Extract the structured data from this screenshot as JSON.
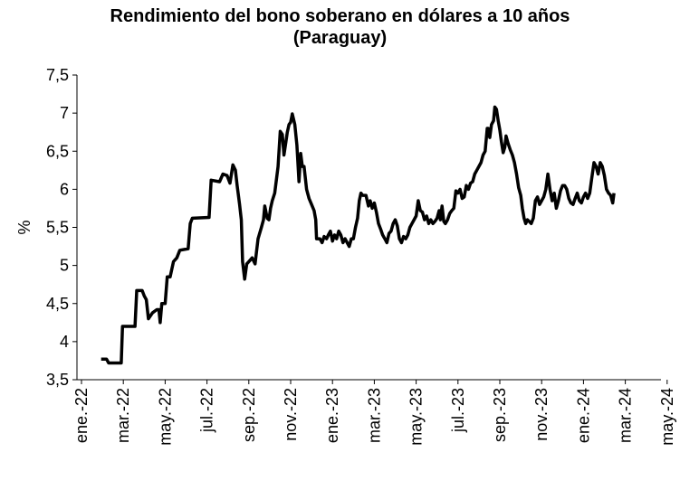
{
  "chart_data": {
    "type": "line",
    "title": "Rendimiento del bono soberano en dólares a 10 años",
    "subtitle": "(Paraguay)",
    "ylabel": "%",
    "xlabel": "",
    "ylim": [
      3.5,
      7.5
    ],
    "yticks": [
      "3,5",
      "4",
      "4,5",
      "5",
      "5,5",
      "6",
      "6,5",
      "7",
      "7,5"
    ],
    "categories": [
      "ene.-22",
      "mar.-22",
      "may.-22",
      "jul.-22",
      "sep.-22",
      "nov.-22",
      "ene.-23",
      "mar.-23",
      "may.-23",
      "jul.-23",
      "sep.-23",
      "nov.-23",
      "ene.-24",
      "mar.-24",
      "may.-24"
    ],
    "grid": false,
    "legend": "none",
    "line_color": "#000000",
    "series": [
      {
        "values": [
          [
            0.47,
            3.77
          ],
          [
            0.6,
            3.77
          ],
          [
            0.65,
            3.72
          ],
          [
            0.95,
            3.72
          ],
          [
            0.98,
            4.2
          ],
          [
            1.28,
            4.2
          ],
          [
            1.32,
            4.67
          ],
          [
            1.45,
            4.67
          ],
          [
            1.5,
            4.6
          ],
          [
            1.55,
            4.55
          ],
          [
            1.6,
            4.3
          ],
          [
            1.7,
            4.38
          ],
          [
            1.8,
            4.42
          ],
          [
            1.85,
            4.42
          ],
          [
            1.88,
            4.25
          ],
          [
            1.92,
            4.5
          ],
          [
            2.0,
            4.5
          ],
          [
            2.05,
            4.85
          ],
          [
            2.12,
            4.85
          ],
          [
            2.2,
            5.05
          ],
          [
            2.28,
            5.1
          ],
          [
            2.35,
            5.2
          ],
          [
            2.55,
            5.22
          ],
          [
            2.6,
            5.55
          ],
          [
            2.65,
            5.62
          ],
          [
            3.05,
            5.63
          ],
          [
            3.1,
            6.12
          ],
          [
            3.3,
            6.1
          ],
          [
            3.38,
            6.2
          ],
          [
            3.48,
            6.18
          ],
          [
            3.55,
            6.08
          ],
          [
            3.62,
            6.32
          ],
          [
            3.68,
            6.25
          ],
          [
            3.72,
            6.05
          ],
          [
            3.78,
            5.8
          ],
          [
            3.82,
            5.6
          ],
          [
            3.85,
            5.05
          ],
          [
            3.9,
            4.82
          ],
          [
            3.95,
            5.02
          ],
          [
            4.0,
            5.05
          ],
          [
            4.08,
            5.1
          ],
          [
            4.15,
            5.02
          ],
          [
            4.22,
            5.35
          ],
          [
            4.3,
            5.5
          ],
          [
            4.35,
            5.6
          ],
          [
            4.38,
            5.78
          ],
          [
            4.44,
            5.62
          ],
          [
            4.48,
            5.6
          ],
          [
            4.52,
            5.75
          ],
          [
            4.56,
            5.85
          ],
          [
            4.62,
            5.95
          ],
          [
            4.7,
            6.3
          ],
          [
            4.75,
            6.76
          ],
          [
            4.8,
            6.72
          ],
          [
            4.84,
            6.45
          ],
          [
            4.88,
            6.6
          ],
          [
            4.92,
            6.75
          ],
          [
            4.96,
            6.85
          ],
          [
            5.0,
            6.88
          ],
          [
            5.04,
            6.99
          ],
          [
            5.1,
            6.85
          ],
          [
            5.15,
            6.58
          ],
          [
            5.2,
            6.1
          ],
          [
            5.24,
            6.47
          ],
          [
            5.28,
            6.3
          ],
          [
            5.32,
            6.3
          ],
          [
            5.38,
            6.0
          ],
          [
            5.44,
            5.88
          ],
          [
            5.5,
            5.8
          ],
          [
            5.56,
            5.72
          ],
          [
            5.6,
            5.6
          ],
          [
            5.62,
            5.35
          ],
          [
            5.7,
            5.35
          ],
          [
            5.75,
            5.3
          ],
          [
            5.8,
            5.38
          ],
          [
            5.86,
            5.35
          ],
          [
            5.9,
            5.4
          ],
          [
            5.95,
            5.45
          ],
          [
            6.0,
            5.32
          ],
          [
            6.05,
            5.4
          ],
          [
            6.1,
            5.35
          ],
          [
            6.15,
            5.45
          ],
          [
            6.2,
            5.4
          ],
          [
            6.25,
            5.3
          ],
          [
            6.3,
            5.35
          ],
          [
            6.35,
            5.3
          ],
          [
            6.4,
            5.25
          ],
          [
            6.45,
            5.35
          ],
          [
            6.5,
            5.35
          ],
          [
            6.55,
            5.5
          ],
          [
            6.6,
            5.62
          ],
          [
            6.64,
            5.85
          ],
          [
            6.68,
            5.95
          ],
          [
            6.72,
            5.92
          ],
          [
            6.8,
            5.92
          ],
          [
            6.86,
            5.78
          ],
          [
            6.9,
            5.85
          ],
          [
            6.95,
            5.75
          ],
          [
            7.0,
            5.82
          ],
          [
            7.05,
            5.7
          ],
          [
            7.1,
            5.55
          ],
          [
            7.15,
            5.48
          ],
          [
            7.2,
            5.4
          ],
          [
            7.25,
            5.35
          ],
          [
            7.3,
            5.3
          ],
          [
            7.35,
            5.42
          ],
          [
            7.4,
            5.45
          ],
          [
            7.45,
            5.55
          ],
          [
            7.5,
            5.6
          ],
          [
            7.55,
            5.52
          ],
          [
            7.6,
            5.35
          ],
          [
            7.65,
            5.3
          ],
          [
            7.7,
            5.38
          ],
          [
            7.75,
            5.35
          ],
          [
            7.8,
            5.4
          ],
          [
            7.85,
            5.5
          ],
          [
            7.9,
            5.55
          ],
          [
            7.95,
            5.6
          ],
          [
            8.0,
            5.65
          ],
          [
            8.05,
            5.85
          ],
          [
            8.1,
            5.72
          ],
          [
            8.15,
            5.7
          ],
          [
            8.2,
            5.6
          ],
          [
            8.25,
            5.65
          ],
          [
            8.3,
            5.55
          ],
          [
            8.35,
            5.6
          ],
          [
            8.4,
            5.55
          ],
          [
            8.45,
            5.58
          ],
          [
            8.5,
            5.62
          ],
          [
            8.55,
            5.72
          ],
          [
            8.58,
            5.6
          ],
          [
            8.62,
            5.78
          ],
          [
            8.66,
            5.58
          ],
          [
            8.7,
            5.55
          ],
          [
            8.75,
            5.6
          ],
          [
            8.8,
            5.68
          ],
          [
            8.85,
            5.72
          ],
          [
            8.9,
            5.75
          ],
          [
            8.95,
            5.98
          ],
          [
            9.0,
            5.95
          ],
          [
            9.05,
            6.0
          ],
          [
            9.1,
            5.88
          ],
          [
            9.15,
            5.9
          ],
          [
            9.2,
            6.05
          ],
          [
            9.25,
            6.0
          ],
          [
            9.3,
            6.08
          ],
          [
            9.35,
            6.1
          ],
          [
            9.4,
            6.2
          ],
          [
            9.45,
            6.25
          ],
          [
            9.5,
            6.3
          ],
          [
            9.55,
            6.35
          ],
          [
            9.6,
            6.45
          ],
          [
            9.65,
            6.5
          ],
          [
            9.7,
            6.8
          ],
          [
            9.72,
            6.8
          ],
          [
            9.76,
            6.68
          ],
          [
            9.8,
            6.85
          ],
          [
            9.85,
            6.9
          ],
          [
            9.88,
            7.08
          ],
          [
            9.92,
            7.05
          ],
          [
            9.96,
            6.9
          ],
          [
            10.0,
            6.78
          ],
          [
            10.04,
            6.62
          ],
          [
            10.08,
            6.48
          ],
          [
            10.12,
            6.55
          ],
          [
            10.15,
            6.7
          ],
          [
            10.2,
            6.6
          ],
          [
            10.25,
            6.52
          ],
          [
            10.3,
            6.45
          ],
          [
            10.35,
            6.35
          ],
          [
            10.4,
            6.2
          ],
          [
            10.45,
            6.02
          ],
          [
            10.5,
            5.92
          ],
          [
            10.54,
            5.75
          ],
          [
            10.58,
            5.62
          ],
          [
            10.62,
            5.55
          ],
          [
            10.66,
            5.6
          ],
          [
            10.7,
            5.58
          ],
          [
            10.75,
            5.55
          ],
          [
            10.8,
            5.62
          ],
          [
            10.85,
            5.85
          ],
          [
            10.9,
            5.9
          ],
          [
            10.95,
            5.8
          ],
          [
            11.0,
            5.85
          ],
          [
            11.05,
            5.9
          ],
          [
            11.1,
            6.0
          ],
          [
            11.15,
            6.2
          ],
          [
            11.2,
            6.0
          ],
          [
            11.25,
            5.85
          ],
          [
            11.3,
            5.95
          ],
          [
            11.35,
            5.75
          ],
          [
            11.4,
            5.85
          ],
          [
            11.45,
            5.98
          ],
          [
            11.5,
            6.05
          ],
          [
            11.55,
            6.05
          ],
          [
            11.6,
            6.0
          ],
          [
            11.65,
            5.88
          ],
          [
            11.7,
            5.82
          ],
          [
            11.75,
            5.8
          ],
          [
            11.8,
            5.88
          ],
          [
            11.85,
            5.95
          ],
          [
            11.9,
            5.85
          ],
          [
            11.95,
            5.82
          ],
          [
            12.0,
            5.9
          ],
          [
            12.05,
            5.95
          ],
          [
            12.1,
            5.88
          ],
          [
            12.15,
            5.95
          ],
          [
            12.2,
            6.15
          ],
          [
            12.25,
            6.35
          ],
          [
            12.3,
            6.3
          ],
          [
            12.35,
            6.2
          ],
          [
            12.4,
            6.35
          ],
          [
            12.45,
            6.3
          ],
          [
            12.5,
            6.18
          ],
          [
            12.55,
            6.0
          ],
          [
            12.6,
            5.95
          ],
          [
            12.65,
            5.92
          ],
          [
            12.7,
            5.82
          ],
          [
            12.73,
            5.95
          ]
        ]
      }
    ]
  }
}
